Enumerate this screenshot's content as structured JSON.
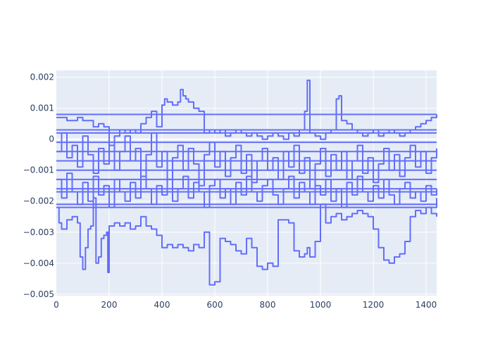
{
  "chart_data": {
    "type": "line",
    "title": "",
    "xlabel": "",
    "ylabel": "",
    "xlim": [
      0,
      1440
    ],
    "ylim": [
      -0.00505,
      0.00222
    ],
    "x_ticks": [
      0,
      200,
      400,
      600,
      800,
      1000,
      1200,
      1400
    ],
    "x_tick_labels": [
      "0",
      "200",
      "400",
      "600",
      "800",
      "1000",
      "1200",
      "1400"
    ],
    "y_ticks": [
      0.002,
      0.001,
      0,
      -0.001,
      -0.002,
      -0.003,
      -0.004,
      -0.005
    ],
    "y_tick_labels": [
      "0.002",
      "0.001",
      "0",
      "−0.001",
      "−0.002",
      "−0.003",
      "−0.004",
      "−0.005"
    ],
    "grid": true,
    "legend": "none",
    "series_color": "#636efa",
    "series": [
      {
        "x": [
          0,
          10,
          20,
          40,
          60,
          80,
          90,
          100,
          110,
          120,
          130,
          140,
          150,
          160,
          170,
          180,
          190,
          195,
          200,
          210,
          220,
          240,
          260,
          280,
          300,
          320,
          340,
          360,
          380,
          400,
          420,
          440,
          460,
          480,
          500,
          520,
          540,
          560,
          580,
          600,
          620,
          640,
          660,
          680,
          700,
          720,
          740,
          760,
          780,
          800,
          820,
          840,
          860,
          880,
          900,
          920,
          940,
          950,
          960,
          980,
          1000,
          1020,
          1040,
          1060,
          1080,
          1100,
          1120,
          1140,
          1160,
          1180,
          1200,
          1220,
          1240,
          1260,
          1280,
          1300,
          1320,
          1340,
          1360,
          1380,
          1400,
          1420,
          1440
        ],
        "y": [
          -0.0022,
          -0.0027,
          -0.0029,
          -0.0026,
          -0.0025,
          -0.0027,
          -0.0038,
          -0.0042,
          -0.0035,
          -0.0029,
          -0.0028,
          -0.0019,
          -0.004,
          -0.0038,
          -0.0032,
          -0.0031,
          -0.003,
          -0.0043,
          -0.0028,
          -0.0028,
          -0.0027,
          -0.0028,
          -0.0027,
          -0.0029,
          -0.0028,
          -0.0025,
          -0.0028,
          -0.0029,
          -0.0031,
          -0.0035,
          -0.0034,
          -0.0035,
          -0.0034,
          -0.0035,
          -0.0036,
          -0.0034,
          -0.0035,
          -0.003,
          -0.0047,
          -0.0046,
          -0.0032,
          -0.0033,
          -0.0034,
          -0.0036,
          -0.0037,
          -0.0032,
          -0.0035,
          -0.0041,
          -0.0042,
          -0.004,
          -0.0041,
          -0.0026,
          -0.0026,
          -0.0027,
          -0.0036,
          -0.0038,
          -0.0037,
          -0.0035,
          -0.0038,
          -0.0033,
          -0.0021,
          -0.0027,
          -0.0025,
          -0.0024,
          -0.0026,
          -0.0025,
          -0.0024,
          -0.0023,
          -0.0024,
          -0.0025,
          -0.0029,
          -0.0035,
          -0.0039,
          -0.004,
          -0.0038,
          -0.0037,
          -0.0033,
          -0.0025,
          -0.0023,
          -0.0024,
          -0.0022,
          -0.0024,
          -0.0025
        ]
      },
      {
        "x": [
          0,
          20,
          40,
          60,
          80,
          100,
          120,
          140,
          160,
          180,
          200,
          220,
          240,
          260,
          280,
          300,
          320,
          340,
          360,
          380,
          400,
          410,
          420,
          440,
          460,
          470,
          480,
          490,
          500,
          520,
          540,
          560,
          580,
          600,
          620,
          640,
          660,
          680,
          700,
          720,
          740,
          760,
          780,
          800,
          820,
          840,
          860,
          880,
          900,
          920,
          940,
          950,
          960,
          980,
          1000,
          1020,
          1040,
          1060,
          1070,
          1080,
          1100,
          1120,
          1140,
          1160,
          1180,
          1200,
          1220,
          1240,
          1260,
          1280,
          1300,
          1320,
          1340,
          1360,
          1380,
          1400,
          1420,
          1440
        ],
        "y": [
          0.0007,
          0.0007,
          0.0006,
          0.0006,
          0.0007,
          0.0006,
          0.0006,
          0.0004,
          0.0005,
          0.0004,
          -0.0002,
          0.0001,
          0.0003,
          0.0002,
          0.0003,
          0.0002,
          0.0005,
          0.0007,
          0.0009,
          0.0004,
          0.0011,
          0.0013,
          0.0012,
          0.0011,
          0.0012,
          0.0016,
          0.0014,
          0.0013,
          0.0012,
          0.001,
          0.0009,
          0.0002,
          0.0003,
          0.0002,
          0.0003,
          0.0001,
          0.0002,
          0.0003,
          0.0002,
          0.0001,
          0.0002,
          0.0001,
          0.0,
          0.0001,
          0.0002,
          0.0001,
          0.0,
          0.0002,
          0.0001,
          0.0003,
          0.0009,
          0.0019,
          0.0002,
          0.0001,
          0.0,
          0.0002,
          0.0003,
          0.0013,
          0.0014,
          0.0006,
          0.0005,
          0.0003,
          0.0002,
          0.0001,
          0.0002,
          0.0003,
          0.0001,
          0.0002,
          0.0003,
          0.0002,
          0.0001,
          0.0002,
          0.0003,
          0.0004,
          0.0005,
          0.0006,
          0.0007,
          0.0008
        ]
      },
      {
        "x": [
          0,
          20,
          40,
          60,
          80,
          100,
          120,
          140,
          160,
          180,
          200,
          220,
          240,
          260,
          280,
          300,
          320,
          340,
          360,
          380,
          400,
          420,
          440,
          460,
          480,
          500,
          520,
          540,
          560,
          580,
          600,
          620,
          640,
          660,
          680,
          700,
          720,
          740,
          760,
          780,
          800,
          820,
          840,
          860,
          880,
          900,
          920,
          940,
          960,
          980,
          1000,
          1020,
          1040,
          1060,
          1080,
          1100,
          1120,
          1140,
          1160,
          1180,
          1200,
          1220,
          1240,
          1260,
          1280,
          1300,
          1320,
          1340,
          1360,
          1380,
          1400,
          1420,
          1440
        ],
        "y": [
          -0.0004,
          0.0002,
          -0.0006,
          -0.0002,
          -0.0009,
          0.0001,
          -0.0005,
          -0.0011,
          -0.0003,
          -0.0008,
          -0.0002,
          -0.001,
          -0.0004,
          0.0001,
          -0.0007,
          -0.0003,
          -0.0012,
          -0.0005,
          0.0002,
          -0.0009,
          -0.0004,
          -0.0013,
          -0.0006,
          -0.0002,
          -0.001,
          -0.0003,
          -0.0008,
          -0.0015,
          -0.0005,
          -0.0001,
          -0.0009,
          -0.0004,
          -0.0012,
          -0.0006,
          -0.0002,
          -0.0011,
          -0.0005,
          -0.0014,
          -0.0007,
          -0.0003,
          -0.001,
          -0.0006,
          -0.0013,
          -0.0004,
          -0.0009,
          -0.0002,
          -0.0011,
          -0.0006,
          -0.0016,
          -0.0008,
          -0.0003,
          -0.0012,
          -0.0005,
          -0.001,
          -0.0004,
          -0.0013,
          -0.0007,
          -0.0002,
          -0.0011,
          -0.0006,
          -0.0014,
          -0.0008,
          -0.0003,
          -0.001,
          -0.0005,
          -0.0012,
          -0.0006,
          -0.0002,
          -0.0009,
          -0.0004,
          -0.0011,
          -0.0006,
          -0.0003
        ]
      },
      {
        "x": [
          0,
          20,
          40,
          60,
          80,
          100,
          120,
          140,
          160,
          180,
          200,
          220,
          240,
          260,
          280,
          300,
          320,
          340,
          360,
          380,
          400,
          420,
          440,
          460,
          480,
          500,
          520,
          540,
          560,
          580,
          600,
          620,
          640,
          660,
          680,
          700,
          720,
          740,
          760,
          780,
          800,
          820,
          840,
          860,
          880,
          900,
          920,
          940,
          960,
          980,
          1000,
          1020,
          1040,
          1060,
          1080,
          1100,
          1120,
          1140,
          1160,
          1180,
          1200,
          1220,
          1240,
          1260,
          1280,
          1300,
          1320,
          1340,
          1360,
          1380,
          1400,
          1420,
          1440
        ],
        "y": [
          -0.0013,
          -0.0019,
          -0.0011,
          -0.0017,
          -0.0021,
          -0.0014,
          -0.002,
          -0.0012,
          -0.0018,
          -0.0015,
          -0.0022,
          -0.0013,
          -0.0017,
          -0.002,
          -0.0014,
          -0.0019,
          -0.0012,
          -0.0016,
          -0.0021,
          -0.0015,
          -0.0018,
          -0.0013,
          -0.002,
          -0.0016,
          -0.0012,
          -0.0019,
          -0.0014,
          -0.0017,
          -0.0022,
          -0.0015,
          -0.0013,
          -0.0019,
          -0.0016,
          -0.0021,
          -0.0014,
          -0.0018,
          -0.0012,
          -0.0017,
          -0.002,
          -0.0015,
          -0.0013,
          -0.0018,
          -0.0021,
          -0.0016,
          -0.0012,
          -0.0019,
          -0.0014,
          -0.0017,
          -0.0021,
          -0.0015,
          -0.0018,
          -0.0013,
          -0.002,
          -0.0016,
          -0.0022,
          -0.0014,
          -0.0018,
          -0.0012,
          -0.0017,
          -0.002,
          -0.0015,
          -0.0019,
          -0.0013,
          -0.0018,
          -0.0021,
          -0.0016,
          -0.0014,
          -0.0019,
          -0.0017,
          -0.002,
          -0.0015,
          -0.0018,
          -0.0016
        ]
      },
      {
        "x": [
          0,
          1440
        ],
        "y": [
          0.0008,
          0.0008
        ]
      },
      {
        "x": [
          0,
          1440
        ],
        "y": [
          0.0003,
          0.0003
        ]
      },
      {
        "x": [
          0,
          1440
        ],
        "y": [
          0.0002,
          0.0002
        ]
      },
      {
        "x": [
          0,
          1440
        ],
        "y": [
          -0.0001,
          -0.0001
        ]
      },
      {
        "x": [
          0,
          1440
        ],
        "y": [
          -0.0004,
          -0.0004
        ]
      },
      {
        "x": [
          0,
          1440
        ],
        "y": [
          -0.0007,
          -0.0007
        ]
      },
      {
        "x": [
          0,
          1440
        ],
        "y": [
          -0.001,
          -0.001
        ]
      },
      {
        "x": [
          0,
          1440
        ],
        "y": [
          -0.0013,
          -0.0013
        ]
      },
      {
        "x": [
          0,
          1440
        ],
        "y": [
          -0.0016,
          -0.0016
        ]
      },
      {
        "x": [
          0,
          1440
        ],
        "y": [
          -0.0017,
          -0.0017
        ]
      },
      {
        "x": [
          0,
          1440
        ],
        "y": [
          -0.0022,
          -0.0019
        ]
      },
      {
        "x": [
          0,
          1440
        ],
        "y": [
          -0.0021,
          -0.0021
        ]
      }
    ]
  }
}
